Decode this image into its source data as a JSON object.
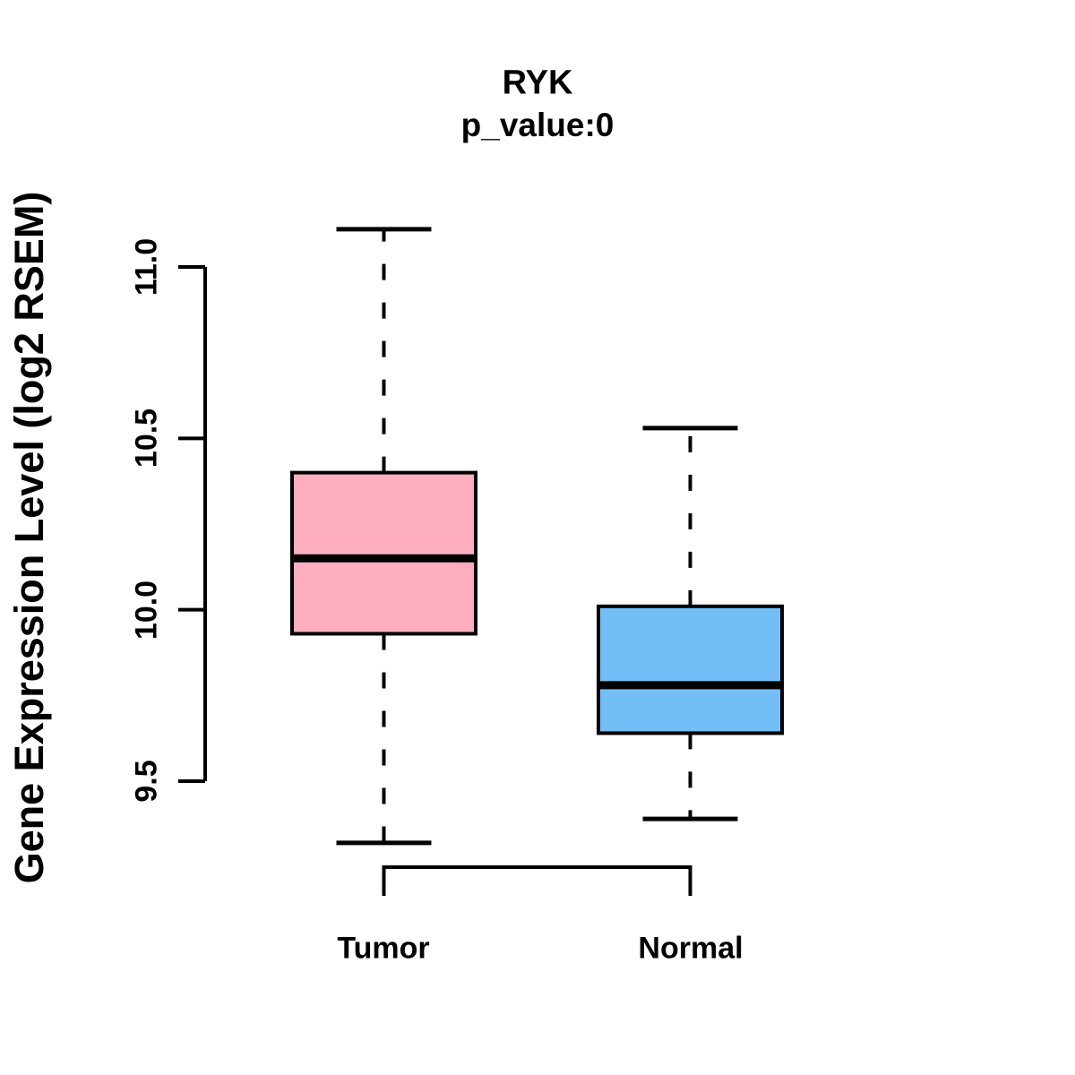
{
  "figure": {
    "background": "#ffffff",
    "line_color": "#000000"
  },
  "chart_data": {
    "type": "boxplot",
    "title": "RYK",
    "subtitle": "p_value:0",
    "ylabel": "Gene Expression Level (log2 RSEM)",
    "xlabel": "",
    "ylim": [
      9.5,
      11.0
    ],
    "yticks": [
      9.5,
      10.0,
      10.5,
      11.0
    ],
    "ytick_labels": [
      "9.5",
      "10.0",
      "10.5",
      "11.0"
    ],
    "grid": false,
    "legend": "none",
    "categories": [
      "Tumor",
      "Normal"
    ],
    "series": [
      {
        "name": "Tumor",
        "color": "#FFAEC0",
        "low": 9.32,
        "q1": 9.93,
        "median": 10.15,
        "q3": 10.4,
        "high": 11.11
      },
      {
        "name": "Normal",
        "color": "#73BEF6",
        "low": 9.39,
        "q1": 9.64,
        "median": 9.78,
        "q3": 10.01,
        "high": 10.53
      }
    ]
  }
}
